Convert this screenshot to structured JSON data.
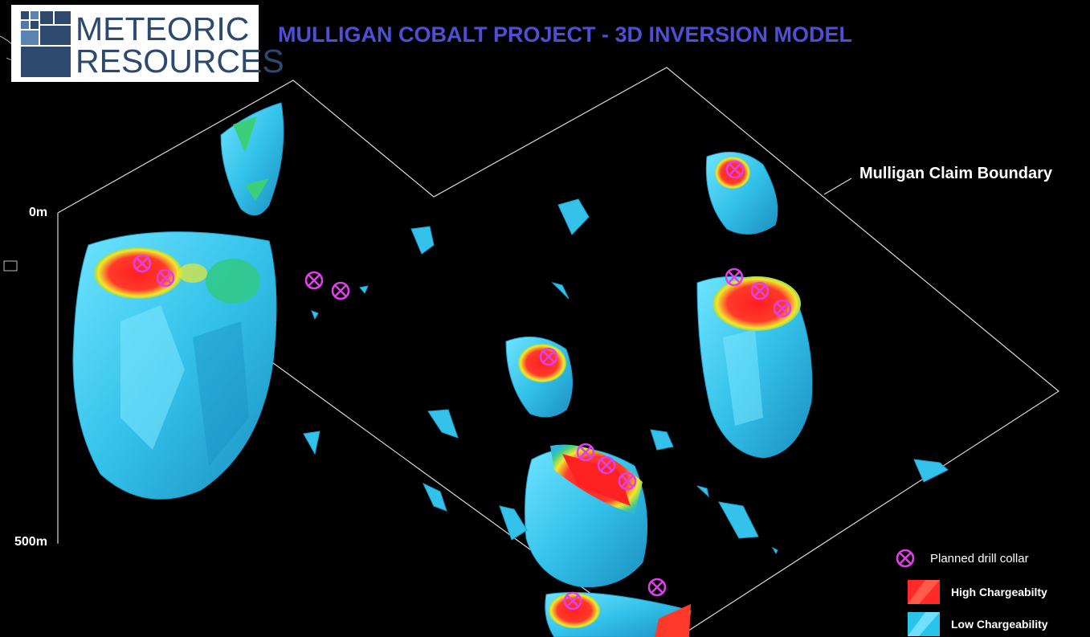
{
  "logo": {
    "line1": "METEORIC",
    "line2": "RESOURCES"
  },
  "title": "MULLIGAN COBALT PROJECT - 3D INVERSION MODEL",
  "boundary_label": "Mulligan Claim Boundary",
  "depth_axis": {
    "top": "0m",
    "bottom": "500m"
  },
  "legend": {
    "drill": "Planned drill collar",
    "high": "High Chargeabilty",
    "low": "Low Chargeability"
  },
  "colors": {
    "background": "#000000",
    "title": "#4f4fd6",
    "logo_text": "#2d4a6e",
    "drill_marker": "#e040e8",
    "high": "#ff2a2a",
    "low": "#29c4ea",
    "transition_yellow": "#e8e830",
    "transition_green": "#3ccf7a",
    "boundary_line": "#d8d8d8"
  },
  "icons": {
    "drill": "crossed-circle-icon",
    "logo": "grid-squares-icon"
  }
}
